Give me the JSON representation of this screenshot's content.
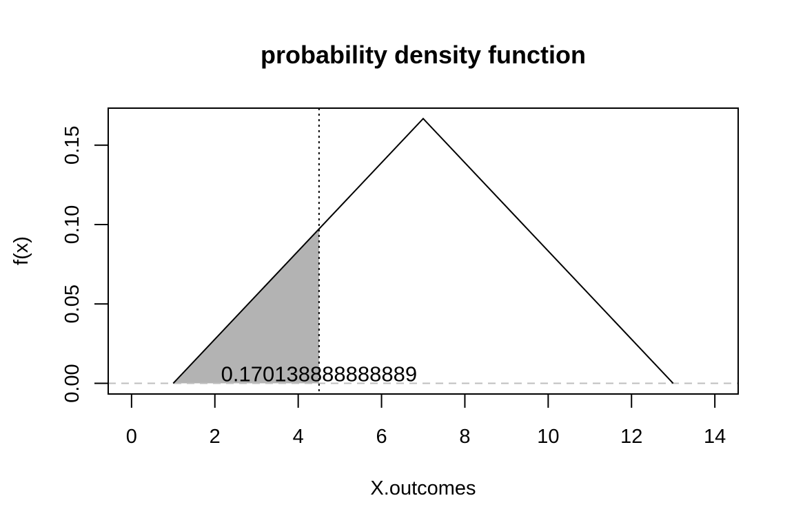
{
  "chart_data": {
    "type": "line",
    "title": "probability density function",
    "xlabel": "X.outcomes",
    "ylabel": "f(x)",
    "xlim": [
      -0.56,
      14.56
    ],
    "ylim": [
      -0.0067,
      0.1733
    ],
    "x_ticks": [
      0,
      2,
      4,
      6,
      8,
      10,
      12,
      14
    ],
    "y_ticks": [
      0.0,
      0.05,
      0.1,
      0.15
    ],
    "y_tick_labels": [
      "0.00",
      "0.05",
      "0.10",
      "0.15"
    ],
    "series": [
      {
        "x": [
          1,
          7,
          13
        ],
        "y": [
          0,
          0.1667,
          0
        ]
      }
    ],
    "shaded_region": {
      "x_from": 1,
      "x_to": 4.5,
      "color": "#b3b3b3"
    },
    "cutoff_line": {
      "x": 4.5,
      "style": "dotted"
    },
    "baseline": {
      "y": 0,
      "style": "dashed",
      "color": "#bebebe"
    },
    "annotation": {
      "text": "0.170138888888889",
      "x": 4.5,
      "y": 0.006
    },
    "grid": false,
    "legend": "none"
  }
}
